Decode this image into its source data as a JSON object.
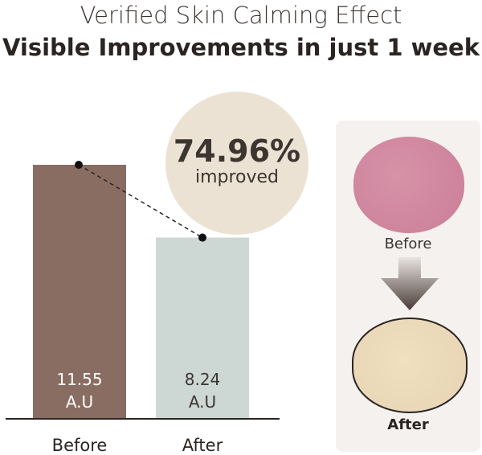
{
  "title": "Verified Skin Calming Effect",
  "subtitle": "Visible Improvements in just 1 week",
  "badge": {
    "value": "74.96%",
    "label": "improved"
  },
  "panel": {
    "before_label": "Before",
    "after_label": "After"
  },
  "chart_data": {
    "type": "bar",
    "categories": [
      "Before",
      "After"
    ],
    "values": [
      11.55,
      8.24
    ],
    "value_labels": [
      "11.55",
      "8.24"
    ],
    "unit": "A.U",
    "colors": [
      "#8a6d62",
      "#cdd7d4"
    ],
    "ylim": [
      0,
      13
    ]
  }
}
